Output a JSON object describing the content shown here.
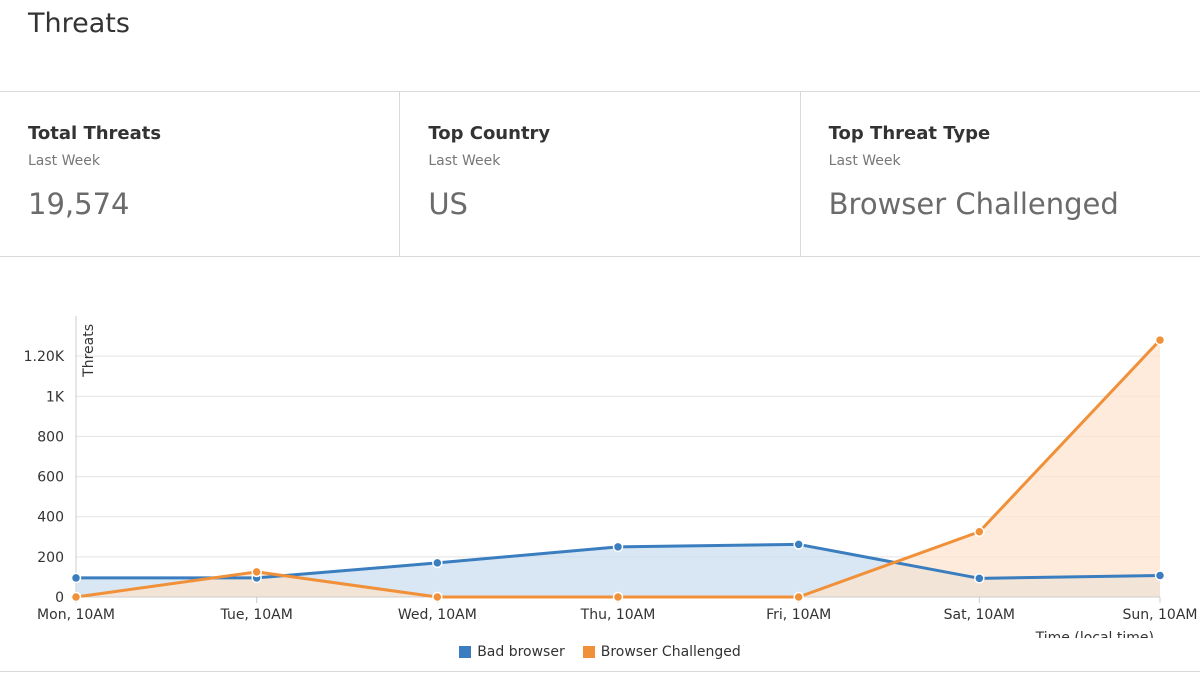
{
  "page": {
    "title": "Threats"
  },
  "stats": [
    {
      "title": "Total Threats",
      "subtitle": "Last Week",
      "value": "19,574"
    },
    {
      "title": "Top Country",
      "subtitle": "Last Week",
      "value": "US"
    },
    {
      "title": "Top Threat Type",
      "subtitle": "Last Week",
      "value": "Browser Challenged"
    }
  ],
  "chart_data": {
    "type": "area",
    "xlabel": "Time (local time)",
    "ylabel": "Threats",
    "categories": [
      "Mon, 10AM",
      "Tue, 10AM",
      "Wed, 10AM",
      "Thu, 10AM",
      "Fri, 10AM",
      "Sat, 10AM",
      "Sun, 10AM"
    ],
    "yticks": [
      0,
      200,
      400,
      600,
      800,
      1000,
      1200
    ],
    "ytick_labels": [
      "0",
      "200",
      "400",
      "600",
      "800",
      "1K",
      "1.20K"
    ],
    "ylim": [
      0,
      1400
    ],
    "grid": true,
    "legend_position": "bottom-center",
    "series": [
      {
        "name": "Bad browser",
        "color": "#3a7ebf",
        "fill": "#c9ddf0",
        "values": [
          95,
          95,
          170,
          250,
          262,
          93,
          107
        ]
      },
      {
        "name": "Browser Challenged",
        "color": "#f0913a",
        "fill": "#fde2cc",
        "values": [
          0,
          125,
          0,
          0,
          0,
          325,
          1280
        ]
      }
    ]
  }
}
